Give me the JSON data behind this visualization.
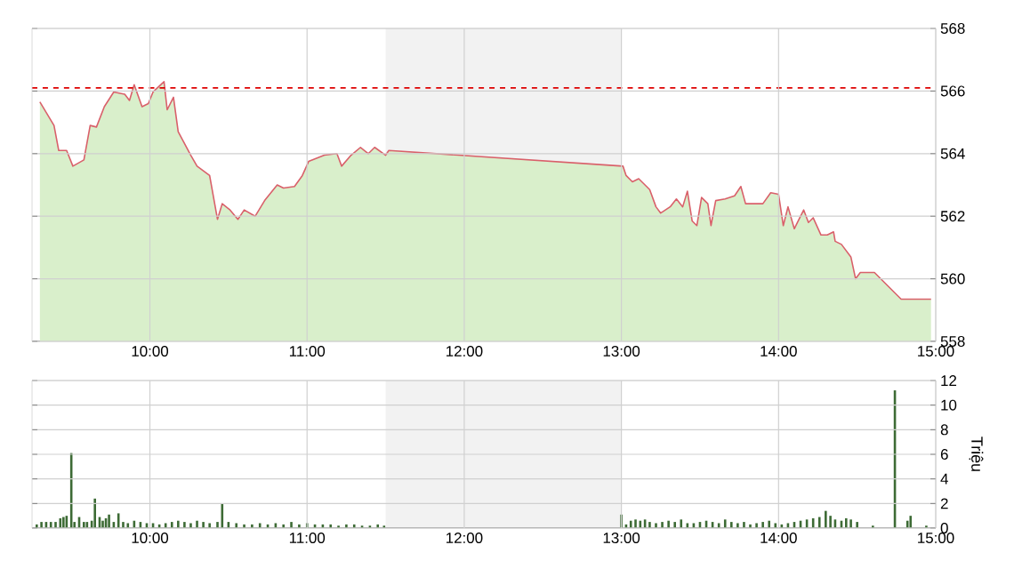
{
  "chart_data": [
    {
      "type": "area",
      "color": "#d9606a",
      "x": [
        9.3,
        9.39,
        9.42,
        9.47,
        9.51,
        9.58,
        9.62,
        9.66,
        9.71,
        9.77,
        9.84,
        9.87,
        9.9,
        9.95,
        9.99,
        10.02,
        10.09,
        10.11,
        10.15,
        10.18,
        10.26,
        10.3,
        10.38,
        10.43,
        10.46,
        10.51,
        10.56,
        10.6,
        10.67,
        10.73,
        10.81,
        10.85,
        10.92,
        10.97,
        11.01,
        11.11,
        11.19,
        11.22,
        11.28,
        11.34,
        11.39,
        11.43,
        11.5,
        11.52,
        13.01,
        13.03,
        13.07,
        13.11,
        13.18,
        13.22,
        13.25,
        13.31,
        13.35,
        13.39,
        13.42,
        13.45,
        13.48,
        13.51,
        13.55,
        13.57,
        13.6,
        13.66,
        13.72,
        13.76,
        13.79,
        13.83,
        13.9,
        13.95,
        14.0,
        14.03,
        14.06,
        14.1,
        14.13,
        14.16,
        14.19,
        14.22,
        14.27,
        14.31,
        14.35,
        14.36,
        14.4,
        14.46,
        14.49,
        14.52,
        14.61,
        14.78,
        14.97
      ],
      "values": [
        565.65,
        564.9,
        564.1,
        564.1,
        563.6,
        563.8,
        564.9,
        564.85,
        565.5,
        565.97,
        565.9,
        565.7,
        566.2,
        565.5,
        565.6,
        565.97,
        566.3,
        565.4,
        565.8,
        564.7,
        563.95,
        563.6,
        563.3,
        561.9,
        562.4,
        562.2,
        561.9,
        562.2,
        562.0,
        562.5,
        563.0,
        562.9,
        562.95,
        563.3,
        563.75,
        563.95,
        564.0,
        563.6,
        563.95,
        564.2,
        564.0,
        564.2,
        563.95,
        564.1,
        563.6,
        563.3,
        563.1,
        563.2,
        562.85,
        562.3,
        562.1,
        562.3,
        562.55,
        562.3,
        562.8,
        561.85,
        561.7,
        562.6,
        562.4,
        561.7,
        562.5,
        562.55,
        562.65,
        562.95,
        562.4,
        562.4,
        562.4,
        562.75,
        562.7,
        561.7,
        562.3,
        561.6,
        561.9,
        562.2,
        561.8,
        561.95,
        561.4,
        561.4,
        561.5,
        561.2,
        561.1,
        560.7,
        560.0,
        560.2,
        560.2,
        559.35,
        559.35
      ],
      "xlim": [
        9.25,
        15
      ],
      "ylim": [
        558,
        568
      ],
      "xticks": [
        {
          "value": 10,
          "label": "10:00"
        },
        {
          "value": 11,
          "label": "11:00"
        },
        {
          "value": 12,
          "label": "12:00"
        },
        {
          "value": 13,
          "label": "13:00"
        },
        {
          "value": 14,
          "label": "14:00"
        },
        {
          "value": 15,
          "label": "15:00"
        }
      ],
      "yticks": [
        558,
        560,
        562,
        564,
        566,
        568
      ],
      "grid": true,
      "bands": [
        {
          "axis": "x",
          "from": 11.5,
          "to": 13,
          "color": "#f2f2f2"
        }
      ],
      "ref_lines": [
        {
          "axis": "y",
          "value": 566.1,
          "color": "#dd0000",
          "line_style": "dashed"
        }
      ]
    },
    {
      "type": "bar",
      "color": "#3d6b35",
      "x": [
        9.28,
        9.31,
        9.34,
        9.37,
        9.4,
        9.43,
        9.45,
        9.47,
        9.5,
        9.52,
        9.55,
        9.58,
        9.6,
        9.63,
        9.65,
        9.68,
        9.7,
        9.72,
        9.74,
        9.77,
        9.8,
        9.83,
        9.86,
        9.9,
        9.94,
        9.98,
        10.02,
        10.06,
        10.1,
        10.14,
        10.18,
        10.22,
        10.26,
        10.3,
        10.34,
        10.38,
        10.43,
        10.46,
        10.5,
        10.55,
        10.6,
        10.65,
        10.7,
        10.75,
        10.8,
        10.85,
        10.9,
        10.95,
        11.0,
        11.05,
        11.1,
        11.15,
        11.2,
        11.25,
        11.3,
        11.35,
        11.4,
        11.45,
        11.49,
        13.0,
        13.03,
        13.06,
        13.09,
        13.12,
        13.15,
        13.18,
        13.22,
        13.26,
        13.3,
        13.34,
        13.38,
        13.42,
        13.46,
        13.5,
        13.54,
        13.58,
        13.62,
        13.66,
        13.7,
        13.74,
        13.78,
        13.82,
        13.86,
        13.9,
        13.94,
        13.98,
        14.02,
        14.06,
        14.1,
        14.14,
        14.18,
        14.22,
        14.26,
        14.3,
        14.33,
        14.36,
        14.4,
        14.43,
        14.46,
        14.5,
        14.6,
        14.74,
        14.82,
        14.84,
        14.94
      ],
      "values": [
        0.3,
        0.5,
        0.5,
        0.5,
        0.5,
        0.8,
        0.9,
        1.0,
        6.1,
        0.5,
        0.9,
        0.5,
        0.5,
        0.6,
        2.4,
        0.9,
        0.6,
        0.8,
        1.1,
        0.5,
        1.2,
        0.5,
        0.4,
        0.6,
        0.5,
        0.4,
        0.4,
        0.3,
        0.4,
        0.5,
        0.6,
        0.5,
        0.4,
        0.6,
        0.5,
        0.4,
        0.5,
        2.0,
        0.5,
        0.4,
        0.3,
        0.3,
        0.4,
        0.3,
        0.4,
        0.3,
        0.5,
        0.3,
        0.4,
        0.3,
        0.3,
        0.3,
        0.2,
        0.3,
        0.3,
        0.2,
        0.2,
        0.3,
        0.2,
        1.1,
        0.3,
        0.6,
        0.7,
        0.6,
        0.7,
        0.5,
        0.4,
        0.5,
        0.6,
        0.5,
        0.7,
        0.4,
        0.4,
        0.5,
        0.6,
        0.5,
        0.4,
        0.7,
        0.5,
        0.4,
        0.5,
        0.3,
        0.4,
        0.5,
        0.6,
        0.4,
        0.3,
        0.4,
        0.5,
        0.6,
        0.7,
        0.8,
        0.9,
        1.4,
        1.0,
        0.7,
        0.6,
        0.8,
        0.7,
        0.5,
        0.2,
        11.2,
        0.6,
        1.0,
        0.2
      ],
      "xlim": [
        9.25,
        15
      ],
      "ylim": [
        0,
        12
      ],
      "xticks": [
        {
          "value": 10,
          "label": "10:00"
        },
        {
          "value": 11,
          "label": "11:00"
        },
        {
          "value": 12,
          "label": "12:00"
        },
        {
          "value": 13,
          "label": "13:00"
        },
        {
          "value": 14,
          "label": "14:00"
        },
        {
          "value": 15,
          "label": "15:00"
        }
      ],
      "yticks": [
        0,
        2,
        4,
        6,
        8,
        10,
        12
      ],
      "ylabel": "Triệu",
      "grid": true,
      "bands": [
        {
          "axis": "x",
          "from": 11.5,
          "to": 13,
          "color": "#f2f2f2"
        }
      ]
    }
  ]
}
